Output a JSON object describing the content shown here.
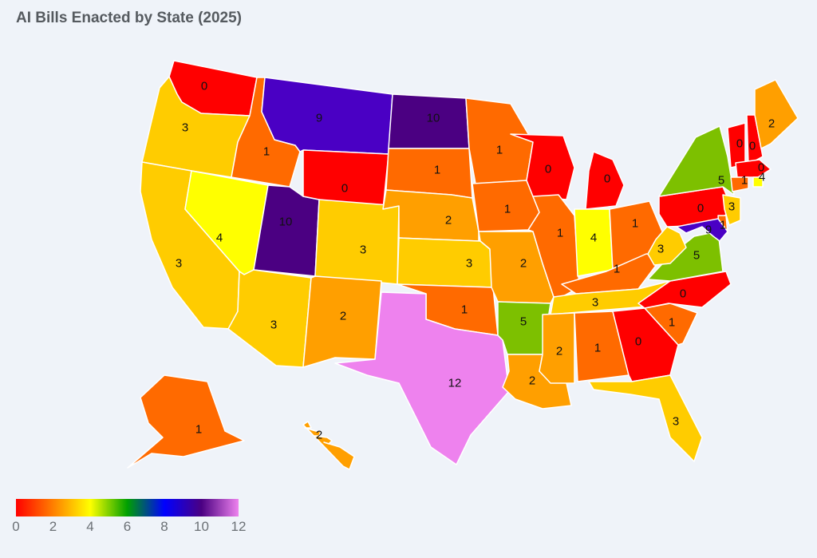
{
  "title": "AI Bills Enacted by State (2025)",
  "legend": {
    "min": 0,
    "max": 12,
    "gradient": [
      "#ff0000",
      "#ff7f00",
      "#ffff00",
      "#00a000",
      "#0000ff",
      "#4b0082",
      "#ee82ee"
    ],
    "ticks": [
      "0",
      "2",
      "4",
      "6",
      "8",
      "10",
      "12"
    ]
  },
  "states": [
    {
      "id": "WA",
      "value": 0,
      "color": "#ff0000"
    },
    {
      "id": "OR",
      "value": 3,
      "color": "#ffcc00"
    },
    {
      "id": "CA",
      "value": 3,
      "color": "#ffcc00"
    },
    {
      "id": "ID",
      "value": 1,
      "color": "#ff6a00"
    },
    {
      "id": "NV",
      "value": 4,
      "color": "#ffff00"
    },
    {
      "id": "UT",
      "value": 10,
      "color": "#4b0082"
    },
    {
      "id": "AZ",
      "value": 3,
      "color": "#ffcc00"
    },
    {
      "id": "MT",
      "value": 9,
      "color": "#4a00c4"
    },
    {
      "id": "WY",
      "value": 0,
      "color": "#ff0000"
    },
    {
      "id": "CO",
      "value": 3,
      "color": "#ffcc00"
    },
    {
      "id": "NM",
      "value": 2,
      "color": "#ff9f00"
    },
    {
      "id": "ND",
      "value": 10,
      "color": "#4b0082"
    },
    {
      "id": "SD",
      "value": 1,
      "color": "#ff6a00"
    },
    {
      "id": "NE",
      "value": 2,
      "color": "#ff9f00"
    },
    {
      "id": "KS",
      "value": 3,
      "color": "#ffcc00"
    },
    {
      "id": "OK",
      "value": 1,
      "color": "#ff6a00"
    },
    {
      "id": "TX",
      "value": 12,
      "color": "#ee82ee"
    },
    {
      "id": "MN",
      "value": 1,
      "color": "#ff6a00"
    },
    {
      "id": "IA",
      "value": 1,
      "color": "#ff6a00"
    },
    {
      "id": "MO",
      "value": 2,
      "color": "#ff9f00"
    },
    {
      "id": "AR",
      "value": 5,
      "color": "#7dc000"
    },
    {
      "id": "LA",
      "value": 2,
      "color": "#ff9f00"
    },
    {
      "id": "WI",
      "value": 0,
      "color": "#ff0000"
    },
    {
      "id": "IL",
      "value": 1,
      "color": "#ff6a00"
    },
    {
      "id": "MI",
      "value": 0,
      "color": "#ff0000"
    },
    {
      "id": "IN",
      "value": 4,
      "color": "#ffff00"
    },
    {
      "id": "OH",
      "value": 1,
      "color": "#ff6a00"
    },
    {
      "id": "KY",
      "value": 1,
      "color": "#ff6a00"
    },
    {
      "id": "TN",
      "value": 3,
      "color": "#ffcc00"
    },
    {
      "id": "MS",
      "value": 2,
      "color": "#ff9f00"
    },
    {
      "id": "AL",
      "value": 1,
      "color": "#ff6a00"
    },
    {
      "id": "GA",
      "value": 0,
      "color": "#ff0000"
    },
    {
      "id": "FL",
      "value": 3,
      "color": "#ffcc00"
    },
    {
      "id": "SC",
      "value": 1,
      "color": "#ff6a00"
    },
    {
      "id": "NC",
      "value": 0,
      "color": "#ff0000"
    },
    {
      "id": "VA",
      "value": 5,
      "color": "#7dc000"
    },
    {
      "id": "WV",
      "value": 3,
      "color": "#ffcc00"
    },
    {
      "id": "PA",
      "value": 0,
      "color": "#ff0000"
    },
    {
      "id": "NY",
      "value": 5,
      "color": "#7dc000"
    },
    {
      "id": "NJ",
      "value": 3,
      "color": "#ffcc00"
    },
    {
      "id": "DE",
      "value": 1,
      "color": "#ff6a00"
    },
    {
      "id": "MD",
      "value": 9,
      "color": "#4a00c4"
    },
    {
      "id": "VT",
      "value": 0,
      "color": "#ff0000"
    },
    {
      "id": "NH",
      "value": 0,
      "color": "#ff0000"
    },
    {
      "id": "ME",
      "value": 2,
      "color": "#ff9f00"
    },
    {
      "id": "MA",
      "value": 0,
      "color": "#ff0000"
    },
    {
      "id": "CT",
      "value": 1,
      "color": "#ff6a00"
    },
    {
      "id": "RI",
      "value": 4,
      "color": "#ffff00"
    },
    {
      "id": "AK",
      "value": 1,
      "color": "#ff6a00"
    },
    {
      "id": "HI",
      "value": 2,
      "color": "#ff9f00"
    }
  ]
}
